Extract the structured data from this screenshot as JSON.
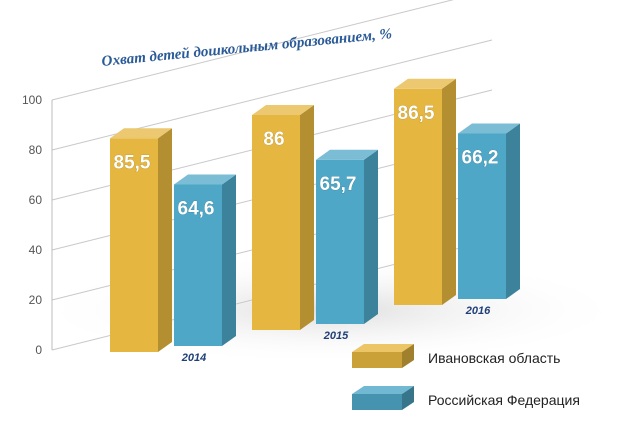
{
  "chart_data": {
    "type": "bar",
    "title": "Охват детей дошкольным образованием, %",
    "categories": [
      "2014",
      "2015",
      "2016"
    ],
    "series": [
      {
        "name": "Ивановская область",
        "values": [
          85.5,
          86,
          86.5
        ],
        "labels": [
          "85,5",
          "86",
          "86,5"
        ],
        "color": "#e6b740"
      },
      {
        "name": "Российская Федерация",
        "values": [
          64.6,
          65.7,
          66.2
        ],
        "labels": [
          "64,6",
          "65,7",
          "66,2"
        ],
        "color": "#4ea7c7"
      }
    ],
    "ylim": [
      0,
      100
    ],
    "yticks": [
      0,
      20,
      40,
      60,
      80,
      100
    ],
    "grid": true,
    "legend": "bottom-right"
  }
}
